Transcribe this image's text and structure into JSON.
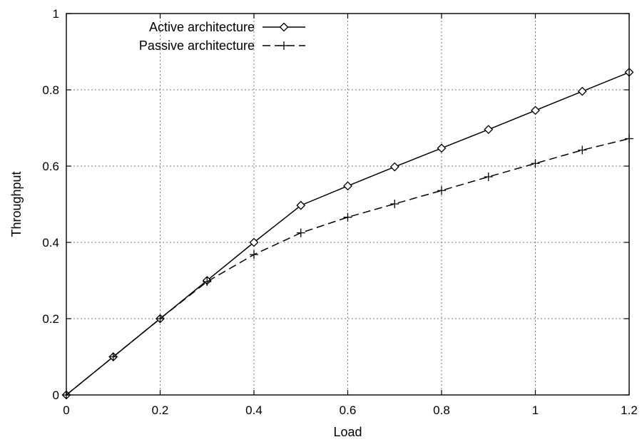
{
  "chart_data": {
    "type": "line",
    "title": "",
    "xlabel": "Load",
    "ylabel": "Throughput",
    "xlim": [
      0,
      1.2
    ],
    "ylim": [
      0,
      1
    ],
    "x_ticks": [
      0,
      0.2,
      0.4,
      0.6,
      0.8,
      1,
      1.2
    ],
    "x_tick_labels": [
      "0",
      "0.2",
      "0.4",
      "0.6",
      "0.8",
      "1",
      "1.2"
    ],
    "y_ticks": [
      0,
      0.2,
      0.4,
      0.6,
      0.8,
      1
    ],
    "y_tick_labels": [
      "0",
      "0.2",
      "0.4",
      "0.6",
      "0.8",
      "1"
    ],
    "grid": true,
    "legend_position": "top-left",
    "series": [
      {
        "name": "Active architecture",
        "marker": "diamond",
        "line_style": "solid",
        "color": "#000000",
        "x": [
          0,
          0.1,
          0.2,
          0.3,
          0.4,
          0.5,
          0.6,
          0.7,
          0.8,
          0.9,
          1.0,
          1.1,
          1.2
        ],
        "y": [
          0,
          0.1,
          0.2,
          0.3,
          0.4,
          0.497,
          0.548,
          0.598,
          0.647,
          0.696,
          0.746,
          0.796,
          0.846
        ]
      },
      {
        "name": "Passive architecture",
        "marker": "plus",
        "line_style": "dashed",
        "color": "#000000",
        "x": [
          0,
          0.1,
          0.2,
          0.3,
          0.4,
          0.5,
          0.6,
          0.7,
          0.8,
          0.9,
          1.0,
          1.1,
          1.2
        ],
        "y": [
          0,
          0.1,
          0.2,
          0.297,
          0.368,
          0.425,
          0.466,
          0.501,
          0.536,
          0.572,
          0.607,
          0.642,
          0.672
        ]
      }
    ]
  }
}
